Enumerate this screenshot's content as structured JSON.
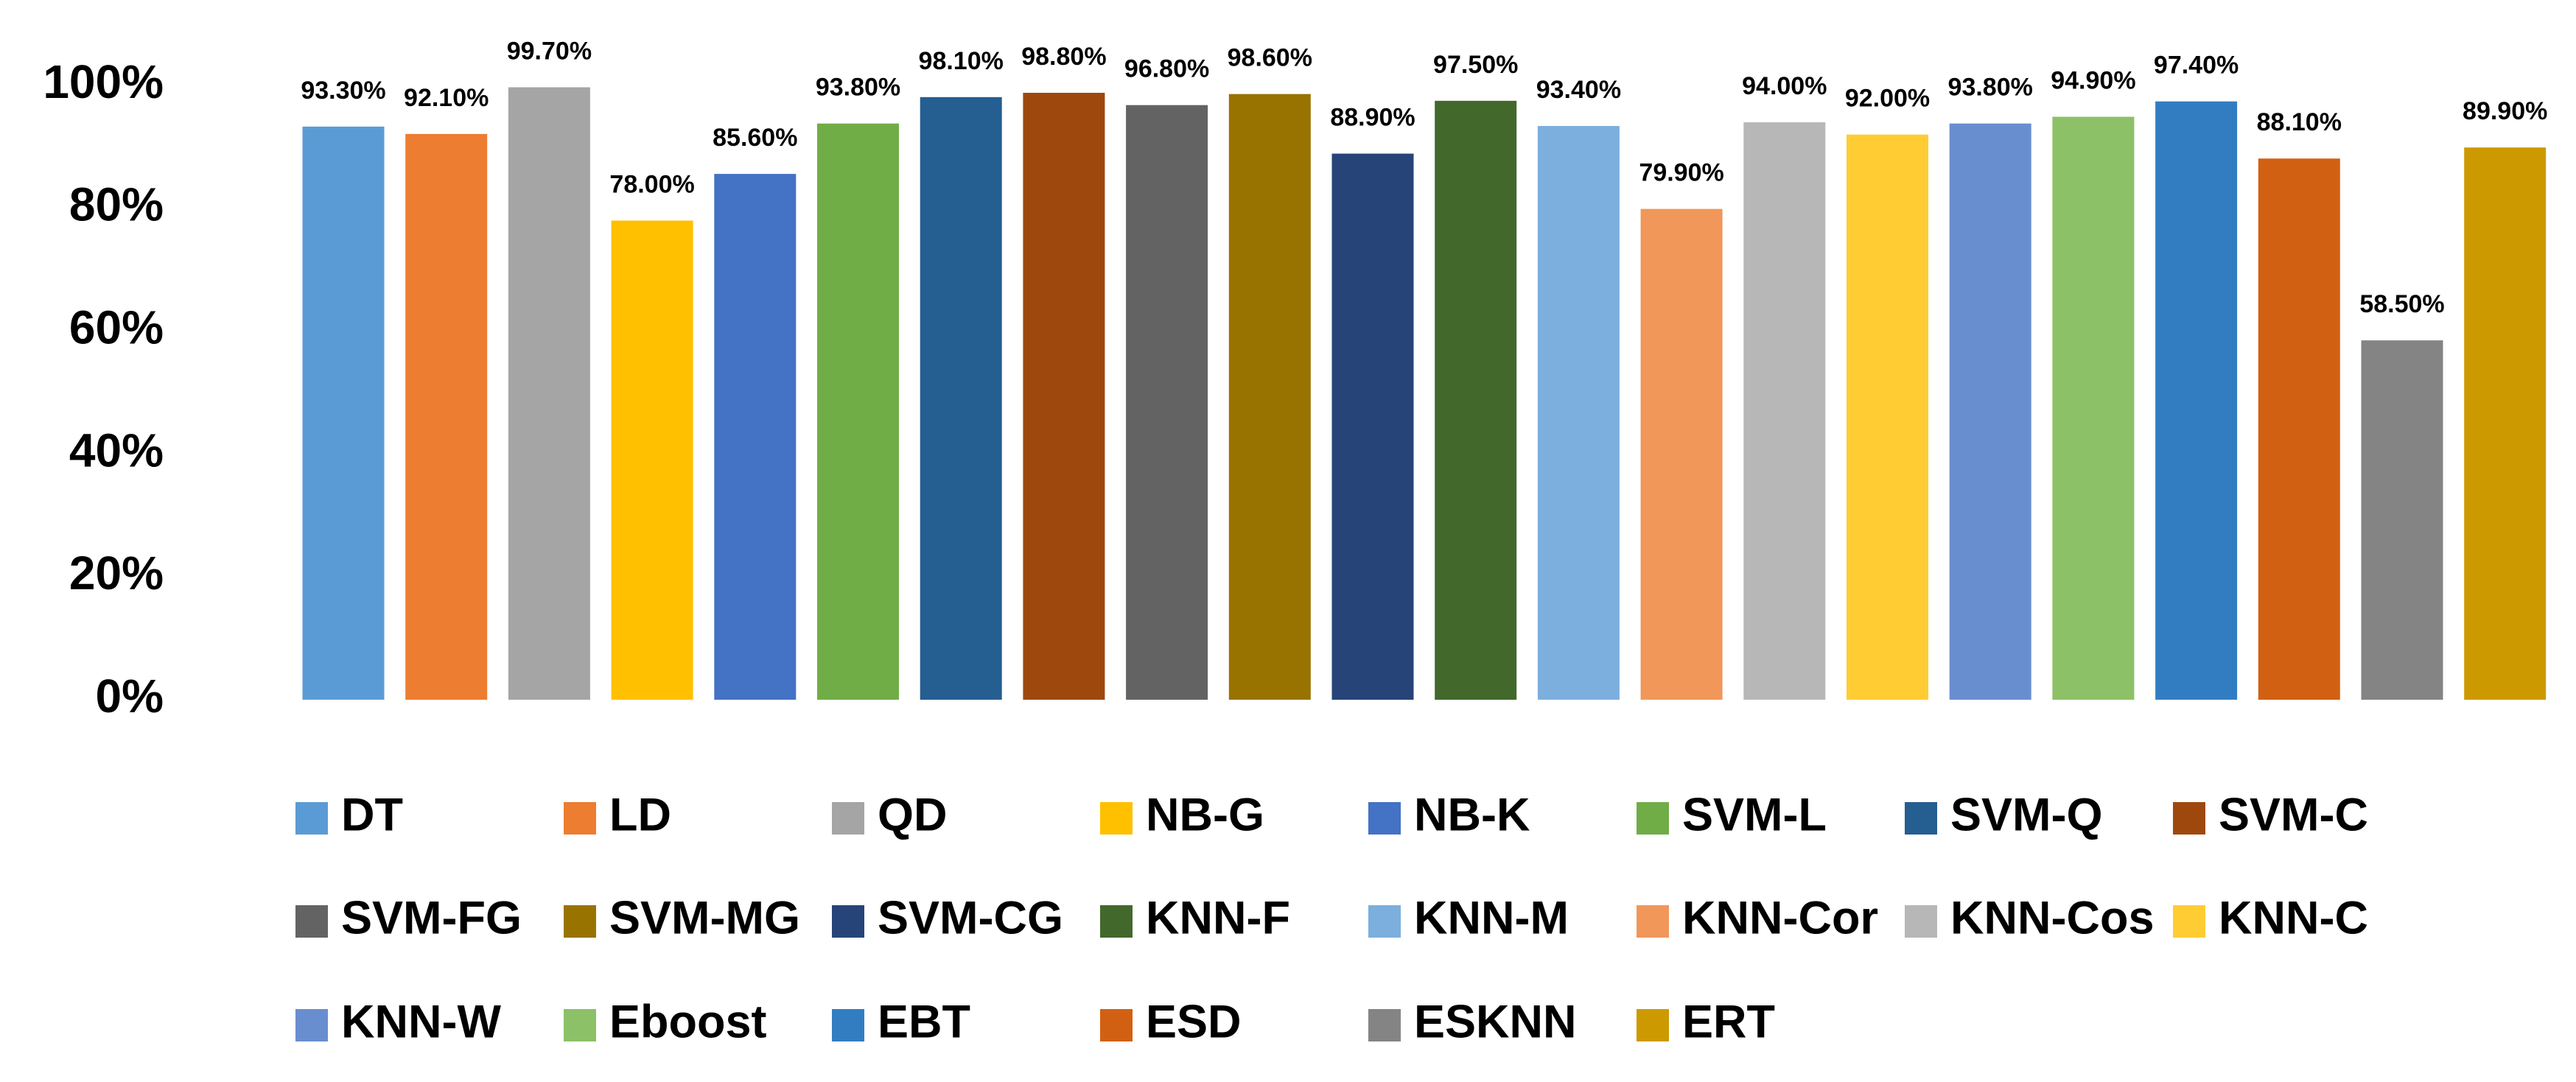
{
  "chart_data": {
    "type": "bar",
    "title": "",
    "xlabel": "",
    "ylabel": "",
    "ylim": [
      0,
      100
    ],
    "y_ticks": [
      "0%",
      "20%",
      "40%",
      "60%",
      "80%",
      "100%"
    ],
    "grid": false,
    "legend_position": "bottom",
    "categories": [
      "DT",
      "LD",
      "QD",
      "NB-G",
      "NB-K",
      "SVM-L",
      "SVM-Q",
      "SVM-C",
      "SVM-FG",
      "SVM-MG",
      "SVM-CG",
      "KNN-F",
      "KNN-M",
      "KNN-Cor",
      "KNN-Cos",
      "KNN-C",
      "KNN-W",
      "Eboost",
      "EBT",
      "ESD",
      "ESKNN",
      "ERT"
    ],
    "values": [
      93.3,
      92.1,
      99.7,
      78.0,
      85.6,
      93.8,
      98.1,
      98.8,
      96.8,
      98.6,
      88.9,
      97.5,
      93.4,
      79.9,
      94.0,
      92.0,
      93.8,
      94.9,
      97.4,
      88.1,
      58.5,
      89.9
    ],
    "value_labels": [
      "93.30%",
      "92.10%",
      "99.70%",
      "78.00%",
      "85.60%",
      "93.80%",
      "98.10%",
      "98.80%",
      "96.80%",
      "98.60%",
      "88.90%",
      "97.50%",
      "93.40%",
      "79.90%",
      "94.00%",
      "92.00%",
      "93.80%",
      "94.90%",
      "97.40%",
      "88.10%",
      "58.50%",
      "89.90%"
    ],
    "colors": [
      "#5B9BD5",
      "#ED7D31",
      "#A5A5A5",
      "#FFC000",
      "#4472C4",
      "#70AD47",
      "#255E91",
      "#9E480E",
      "#636363",
      "#997300",
      "#264478",
      "#43682B",
      "#7CAFDD",
      "#F1975A",
      "#B7B7B7",
      "#FFCD33",
      "#698ED0",
      "#8CC168",
      "#327DC2",
      "#D26012",
      "#848484",
      "#CC9A00"
    ]
  }
}
